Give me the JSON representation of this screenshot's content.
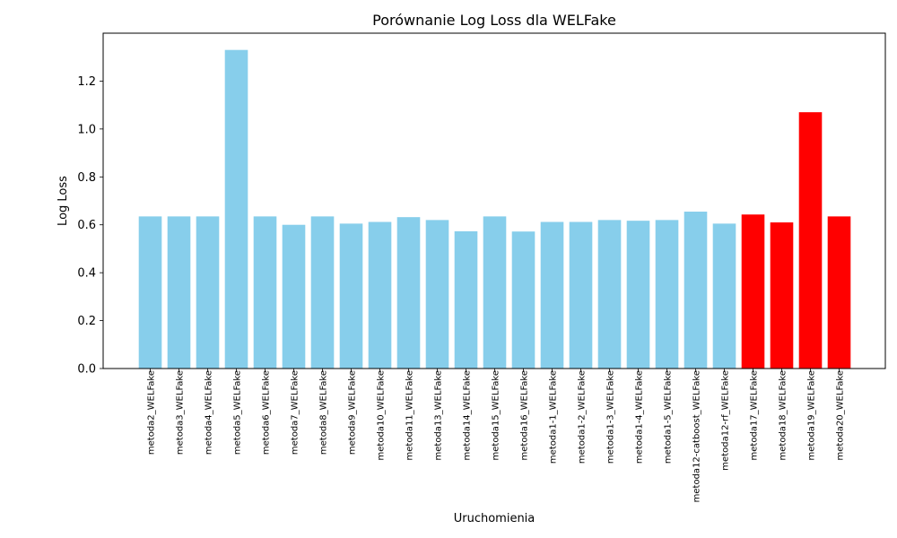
{
  "chart_data": {
    "type": "bar",
    "title": "Porównanie Log Loss dla WELFake",
    "xlabel": "Uruchomienia",
    "ylabel": "Log Loss",
    "ylim": [
      0,
      1.4
    ],
    "yticks": [
      0.0,
      0.2,
      0.4,
      0.6,
      0.8,
      1.0,
      1.2
    ],
    "ytick_labels": [
      "0.0",
      "0.2",
      "0.4",
      "0.6",
      "0.8",
      "1.0",
      "1.2"
    ],
    "grid": false,
    "legend": "none",
    "categories": [
      "metoda2_WELFake",
      "metoda3_WELFake",
      "metoda4_WELFake",
      "metoda5_WELFake",
      "metoda6_WELFake",
      "metoda7_WELFake",
      "metoda8_WELFake",
      "metoda9_WELFake",
      "metoda10_WELFake",
      "metoda11_WELFake",
      "metoda13_WELFake",
      "metoda14_WELFake",
      "metoda15_WELFake",
      "metoda16_WELFake",
      "metoda1-1_WELFake",
      "metoda1-2_WELFake",
      "metoda1-3_WELFake",
      "metoda1-4_WELFake",
      "metoda1-5_WELFake",
      "metoda12-catboost_WELFake",
      "metoda12-rf_WELFake",
      "metoda17_WELFake",
      "metoda18_WELFake",
      "metoda19_WELFake",
      "metoda20_WELFake"
    ],
    "values": [
      0.635,
      0.635,
      0.635,
      1.33,
      0.635,
      0.6,
      0.635,
      0.605,
      0.612,
      0.632,
      0.62,
      0.573,
      0.635,
      0.572,
      0.612,
      0.612,
      0.62,
      0.617,
      0.62,
      0.655,
      0.605,
      0.643,
      0.61,
      1.07,
      0.635
    ],
    "bar_colors": [
      "#87CEEB",
      "#87CEEB",
      "#87CEEB",
      "#87CEEB",
      "#87CEEB",
      "#87CEEB",
      "#87CEEB",
      "#87CEEB",
      "#87CEEB",
      "#87CEEB",
      "#87CEEB",
      "#87CEEB",
      "#87CEEB",
      "#87CEEB",
      "#87CEEB",
      "#87CEEB",
      "#87CEEB",
      "#87CEEB",
      "#87CEEB",
      "#87CEEB",
      "#87CEEB",
      "#FF0000",
      "#FF0000",
      "#FF0000",
      "#FF0000"
    ]
  }
}
